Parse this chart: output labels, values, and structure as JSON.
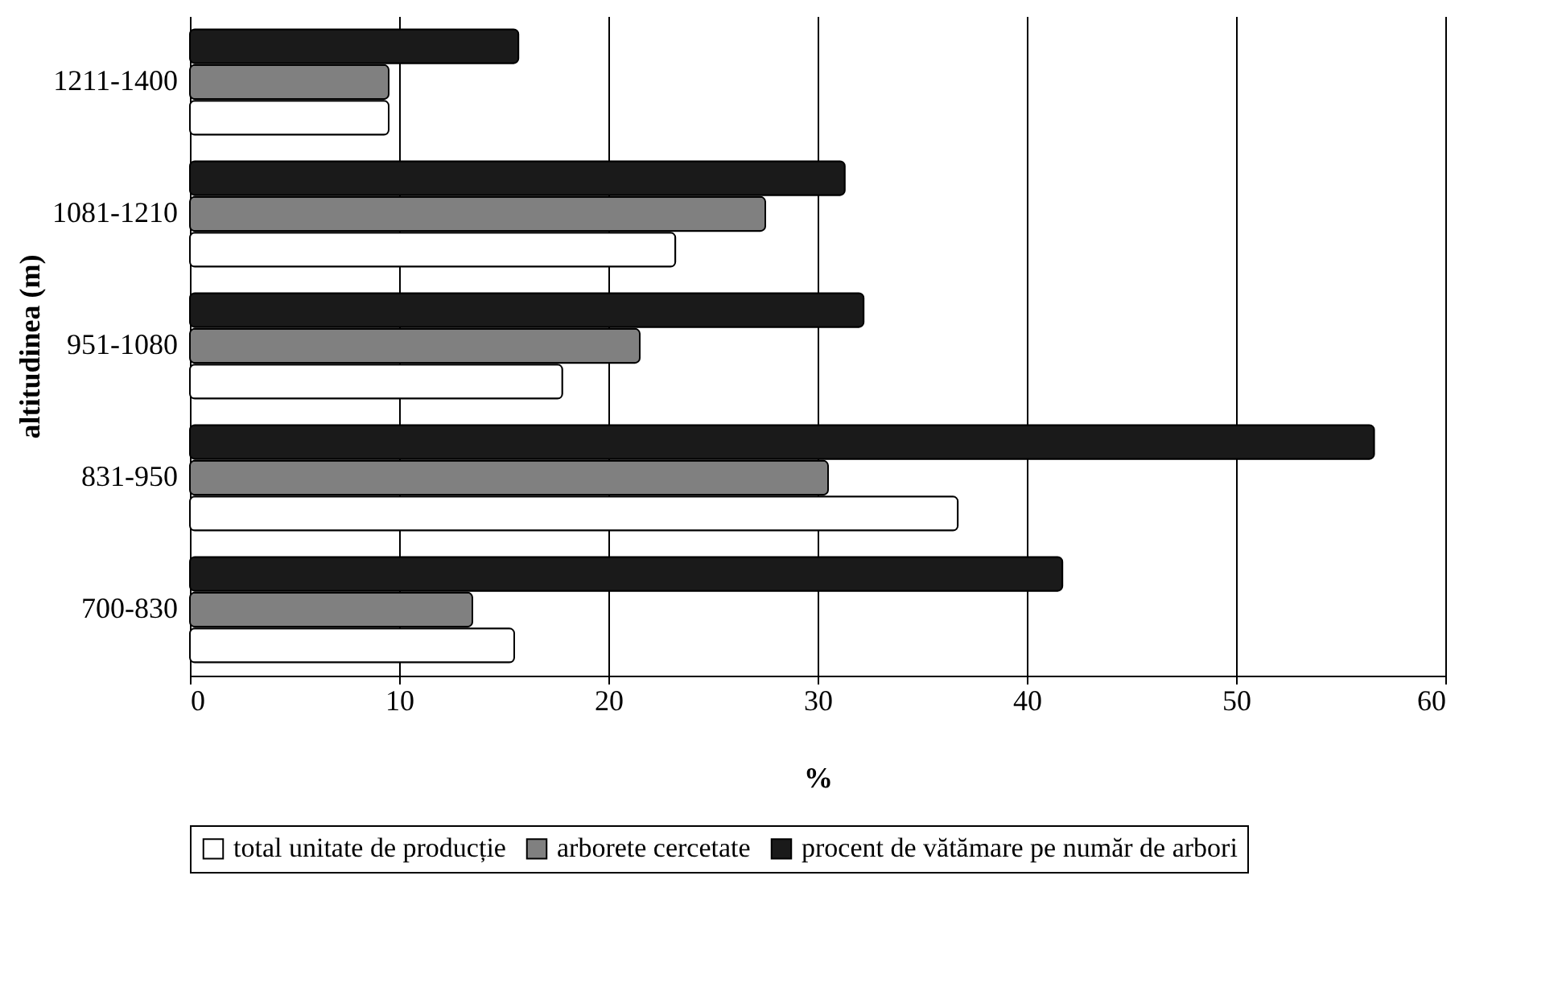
{
  "chart_data": {
    "type": "bar",
    "orientation": "horizontal",
    "xlabel": "%",
    "ylabel": "altitudinea (m)",
    "categories": [
      "1211-1400",
      "1081-1210",
      "951-1080",
      "831-950",
      "700-830"
    ],
    "series": [
      {
        "name": "total unitate de producție",
        "color": "#ffffff",
        "values": [
          9.5,
          23.2,
          17.8,
          36.7,
          15.5
        ]
      },
      {
        "name": "arborete cercetate",
        "color": "#808080",
        "values": [
          9.5,
          27.5,
          21.5,
          30.5,
          13.5
        ]
      },
      {
        "name": "procent de vătămare pe număr de arbori",
        "color": "#1a1a1a",
        "values": [
          15.7,
          31.3,
          32.2,
          56.6,
          41.7
        ]
      }
    ],
    "xlim": [
      0,
      60
    ],
    "xticks": [
      0,
      10,
      20,
      30,
      40,
      50,
      60
    ],
    "grid": "x",
    "legend": "bottom"
  }
}
